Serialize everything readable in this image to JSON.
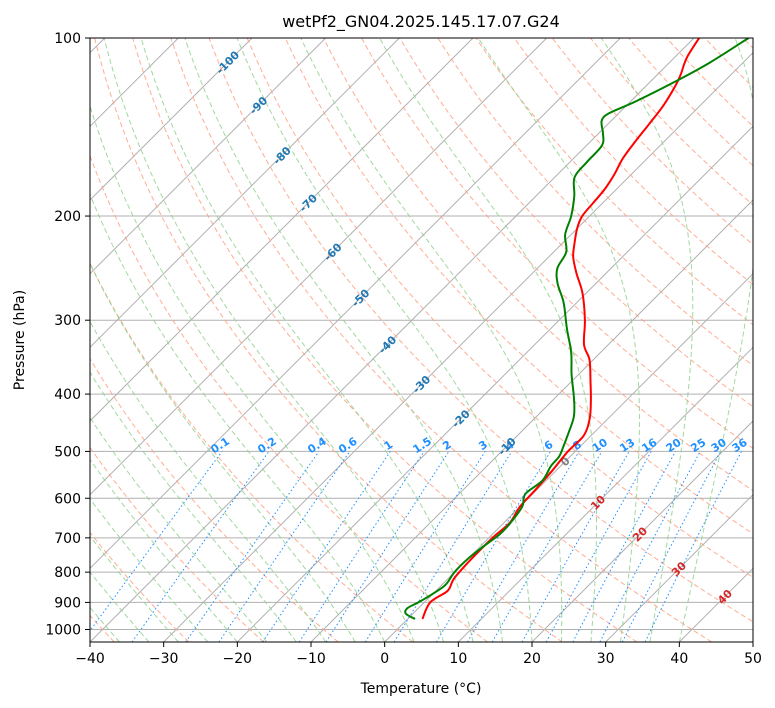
{
  "chart_data": {
    "type": "skew-t",
    "title": "wetPf2_GN04.2025.145.17.07.G24",
    "xlabel": "Temperature (°C)",
    "ylabel": "Pressure (hPa)",
    "xlim": [
      -40,
      50
    ],
    "ylim": [
      1050,
      100
    ],
    "x_ticks": [
      -40,
      -30,
      -20,
      -10,
      0,
      10,
      20,
      30,
      40,
      50
    ],
    "y_ticks": [
      100,
      200,
      300,
      400,
      500,
      600,
      700,
      800,
      900,
      1000
    ],
    "grid": true,
    "colors": {
      "temperature": "#ff0000",
      "dewpoint": "#008000",
      "isotherm": "#b0b0b0",
      "dry_adiabat": "#ff9f80",
      "moist_adiabat": "#8fd18f",
      "mixing_ratio": "#1e90ff",
      "isotherm_label": "#1f77b4",
      "moist_label": "#d62728",
      "zero_label": "#808080",
      "mixing_label": "#1e90ff"
    },
    "isotherm_labels": [
      {
        "t": -100,
        "text": "-100"
      },
      {
        "t": -90,
        "text": "-90"
      },
      {
        "t": -80,
        "text": "-80"
      },
      {
        "t": -70,
        "text": "-70"
      },
      {
        "t": -60,
        "text": "-60"
      },
      {
        "t": -50,
        "text": "-50"
      },
      {
        "t": -40,
        "text": "-40"
      },
      {
        "t": -30,
        "text": "-30"
      },
      {
        "t": -20,
        "text": "-20"
      },
      {
        "t": -10,
        "text": "-10"
      },
      {
        "t": 0,
        "text": "0"
      },
      {
        "t": 10,
        "text": "10"
      },
      {
        "t": 20,
        "text": "20"
      },
      {
        "t": 30,
        "text": "30"
      },
      {
        "t": 40,
        "text": "40"
      }
    ],
    "mixing_ratio_labels": [
      "0.1",
      "0.2",
      "0.4",
      "0.6",
      "1",
      "1.5",
      "2",
      "3",
      "4",
      "6",
      "8",
      "10",
      "13",
      "16",
      "20",
      "25",
      "30",
      "36"
    ],
    "mixing_ratios": [
      0.1,
      0.2,
      0.4,
      0.6,
      1,
      1.5,
      2,
      3,
      4,
      6,
      8,
      10,
      13,
      16,
      20,
      25,
      30,
      36
    ],
    "temperature": [
      {
        "p": 960,
        "t": 2.0
      },
      {
        "p": 900,
        "t": 0.8
      },
      {
        "p": 860,
        "t": 1.6
      },
      {
        "p": 820,
        "t": 0.8
      },
      {
        "p": 760,
        "t": 0.5
      },
      {
        "p": 700,
        "t": 0.5
      },
      {
        "p": 660,
        "t": 0.8
      },
      {
        "p": 620,
        "t": 0.0
      },
      {
        "p": 580,
        "t": -0.2
      },
      {
        "p": 540,
        "t": -0.5
      },
      {
        "p": 500,
        "t": -1.0
      },
      {
        "p": 470,
        "t": -1.0
      },
      {
        "p": 440,
        "t": -2.5
      },
      {
        "p": 410,
        "t": -4.8
      },
      {
        "p": 380,
        "t": -7.5
      },
      {
        "p": 350,
        "t": -10.5
      },
      {
        "p": 330,
        "t": -13.3
      },
      {
        "p": 300,
        "t": -16.5
      },
      {
        "p": 270,
        "t": -20.5
      },
      {
        "p": 250,
        "t": -24.0
      },
      {
        "p": 235,
        "t": -26.6
      },
      {
        "p": 225,
        "t": -28.0
      },
      {
        "p": 210,
        "t": -30.0
      },
      {
        "p": 200,
        "t": -31.0
      },
      {
        "p": 190,
        "t": -31.3
      },
      {
        "p": 180,
        "t": -31.6
      },
      {
        "p": 170,
        "t": -32.3
      },
      {
        "p": 160,
        "t": -33.3
      },
      {
        "p": 150,
        "t": -33.9
      },
      {
        "p": 140,
        "t": -34.4
      },
      {
        "p": 130,
        "t": -35.0
      },
      {
        "p": 120,
        "t": -36.1
      },
      {
        "p": 115,
        "t": -36.9
      },
      {
        "p": 108,
        "t": -38.3
      },
      {
        "p": 100,
        "t": -39.3
      }
    ],
    "dewpoint": [
      {
        "p": 960,
        "t": 1.0
      },
      {
        "p": 940,
        "t": -1.0
      },
      {
        "p": 920,
        "t": -1.5
      },
      {
        "p": 900,
        "t": -0.8
      },
      {
        "p": 870,
        "t": 0.0
      },
      {
        "p": 840,
        "t": 0.5
      },
      {
        "p": 800,
        "t": 0.0
      },
      {
        "p": 760,
        "t": 0.0
      },
      {
        "p": 720,
        "t": 0.5
      },
      {
        "p": 690,
        "t": 1.0
      },
      {
        "p": 660,
        "t": 0.9
      },
      {
        "p": 620,
        "t": 0.3
      },
      {
        "p": 590,
        "t": -1.0
      },
      {
        "p": 560,
        "t": -0.5
      },
      {
        "p": 530,
        "t": -1.3
      },
      {
        "p": 510,
        "t": -1.5
      },
      {
        "p": 490,
        "t": -2.3
      },
      {
        "p": 470,
        "t": -3.2
      },
      {
        "p": 440,
        "t": -4.7
      },
      {
        "p": 420,
        "t": -6.2
      },
      {
        "p": 400,
        "t": -8.0
      },
      {
        "p": 370,
        "t": -11.0
      },
      {
        "p": 340,
        "t": -14.0
      },
      {
        "p": 310,
        "t": -17.8
      },
      {
        "p": 280,
        "t": -21.8
      },
      {
        "p": 260,
        "t": -25.2
      },
      {
        "p": 245,
        "t": -27.3
      },
      {
        "p": 230,
        "t": -28.3
      },
      {
        "p": 215,
        "t": -30.8
      },
      {
        "p": 200,
        "t": -32.5
      },
      {
        "p": 185,
        "t": -34.8
      },
      {
        "p": 172,
        "t": -37.3
      },
      {
        "p": 162,
        "t": -37.7
      },
      {
        "p": 152,
        "t": -37.9
      },
      {
        "p": 145,
        "t": -39.4
      },
      {
        "p": 138,
        "t": -41.3
      },
      {
        "p": 134,
        "t": -41.3
      },
      {
        "p": 128,
        "t": -39.3
      },
      {
        "p": 118,
        "t": -36.5
      },
      {
        "p": 110,
        "t": -34.5
      },
      {
        "p": 100,
        "t": -32.6
      }
    ]
  }
}
